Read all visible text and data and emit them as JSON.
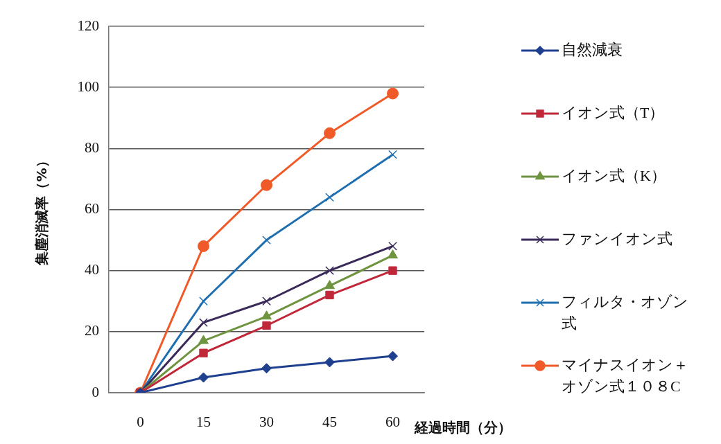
{
  "chart_data": {
    "type": "line",
    "xlabel": "経過時間（分）",
    "ylabel": "集塵消滅率（%）",
    "categories": [
      "0",
      "15",
      "30",
      "45",
      "60"
    ],
    "ylim": [
      0,
      120
    ],
    "yticks": [
      0,
      20,
      40,
      60,
      80,
      100,
      120
    ],
    "grid": "y",
    "legend": "right",
    "series": [
      {
        "name": "自然減衰",
        "color": "#1f3f8f",
        "marker": "diamond",
        "values": [
          0,
          5,
          8,
          10,
          12
        ]
      },
      {
        "name": "イオン式（T）",
        "color": "#c0283a",
        "marker": "square",
        "values": [
          0,
          13,
          22,
          32,
          40
        ]
      },
      {
        "name": "イオン式（K）",
        "color": "#6f9440",
        "marker": "triangle",
        "values": [
          0,
          17,
          25,
          35,
          45
        ]
      },
      {
        "name": "ファンイオン式",
        "color": "#3a2a5a",
        "marker": "cross",
        "values": [
          0,
          23,
          30,
          40,
          48
        ]
      },
      {
        "name": "フィルタ・オゾン式",
        "color": "#1f6fb0",
        "marker": "cross",
        "values": [
          0,
          30,
          50,
          64,
          78
        ]
      },
      {
        "name": "マイナスイオン＋オゾン式１０８C",
        "color": "#f05a28",
        "marker": "circle",
        "values": [
          0,
          48,
          68,
          85,
          98
        ]
      }
    ]
  }
}
